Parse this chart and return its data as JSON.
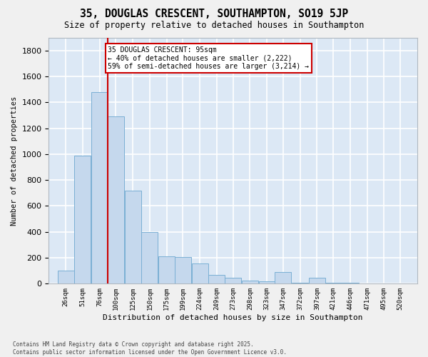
{
  "title": "35, DOUGLAS CRESCENT, SOUTHAMPTON, SO19 5JP",
  "subtitle": "Size of property relative to detached houses in Southampton",
  "xlabel": "Distribution of detached houses by size in Southampton",
  "ylabel": "Number of detached properties",
  "bar_color": "#c5d8ed",
  "bar_edge_color": "#7aafd4",
  "bg_color": "#dce8f5",
  "grid_color": "#ffffff",
  "vline_color": "#cc0000",
  "annotation_text": "35 DOUGLAS CRESCENT: 95sqm\n← 40% of detached houses are smaller (2,222)\n59% of semi-detached houses are larger (3,214) →",
  "categories": [
    "26sqm",
    "51sqm",
    "76sqm",
    "100sqm",
    "125sqm",
    "150sqm",
    "175sqm",
    "199sqm",
    "224sqm",
    "249sqm",
    "273sqm",
    "298sqm",
    "323sqm",
    "347sqm",
    "372sqm",
    "397sqm",
    "421sqm",
    "446sqm",
    "471sqm",
    "495sqm",
    "520sqm"
  ],
  "bin_starts": [
    26,
    51,
    76,
    100,
    125,
    150,
    175,
    199,
    224,
    249,
    273,
    298,
    323,
    347,
    372,
    397,
    421,
    446,
    471,
    495,
    520
  ],
  "bin_width": 25,
  "values": [
    100,
    990,
    1480,
    1290,
    720,
    400,
    210,
    205,
    155,
    70,
    45,
    25,
    20,
    90,
    10,
    45,
    5,
    5,
    0,
    0,
    0
  ],
  "vline_x": 100,
  "ylim": [
    0,
    1900
  ],
  "yticks": [
    0,
    200,
    400,
    600,
    800,
    1000,
    1200,
    1400,
    1600,
    1800
  ],
  "fig_width": 6.0,
  "fig_height": 5.0,
  "footnote": "Contains HM Land Registry data © Crown copyright and database right 2025.\nContains public sector information licensed under the Open Government Licence v3.0."
}
